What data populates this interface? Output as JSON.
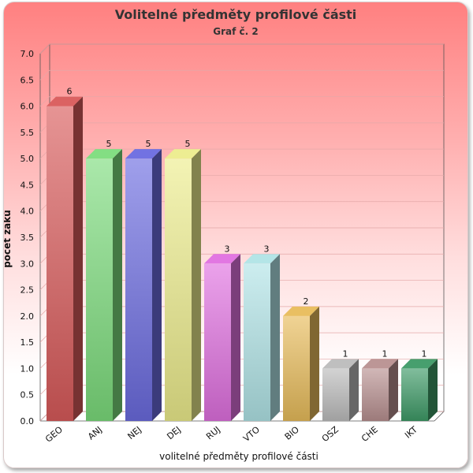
{
  "chart_data": {
    "type": "bar",
    "title": "Volitelné předměty profilové části",
    "subtitle": "Graf č. 2",
    "xlabel": "volitelné předměty profilové části",
    "ylabel": "počet žáků",
    "ylim": [
      0,
      7
    ],
    "yticks": [
      "0.0",
      "0.5",
      "1.0",
      "1.5",
      "2.0",
      "2.5",
      "3.0",
      "3.5",
      "4.0",
      "4.5",
      "5.0",
      "5.5",
      "6.0",
      "6.5",
      "7.0"
    ],
    "grid": true,
    "categories": [
      "GEO",
      "ANJ",
      "NEJ",
      "DEJ",
      "RUJ",
      "VTO",
      "BIO",
      "OSZ",
      "CHE",
      "IKT"
    ],
    "values": [
      6,
      5,
      5,
      5,
      3,
      3,
      2,
      1,
      1,
      1
    ],
    "data_labels": [
      "6",
      "5",
      "5",
      "5",
      "3",
      "3",
      "2",
      "1",
      "1",
      "1"
    ],
    "colors": [
      "#d95a5a",
      "#7cdc7c",
      "#6b6be0",
      "#ecec8c",
      "#e070e0",
      "#b0e4e6",
      "#e8bc5a",
      "#bcbcbc",
      "#b89090",
      "#3d9a66"
    ]
  }
}
